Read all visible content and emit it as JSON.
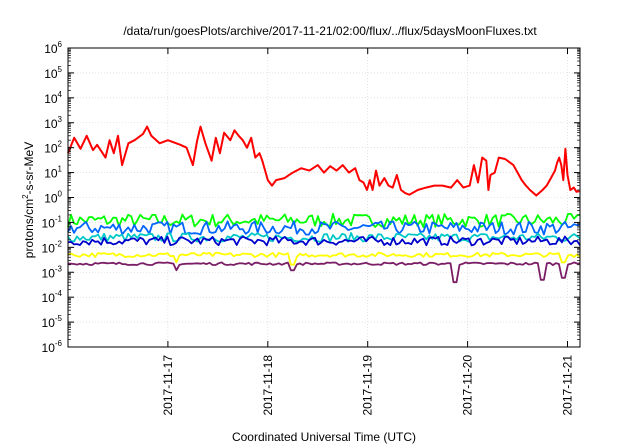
{
  "chart_data": {
    "type": "line",
    "title": "/data/run/goesPlots/archive/2017-11-21/02:00/flux/../flux/5daysMoonFluxes.txt",
    "xlabel": "Coordinated Universal Time (UTC)",
    "ylabel_parts": {
      "pre": "protons/cm",
      "sup": "2",
      "post": "-s-sr-MeV"
    },
    "y_scale": "log",
    "ylim": [
      1e-06,
      1000000.0
    ],
    "xlim": [
      "2017-11-16T00:00",
      "2017-11-21T03:00"
    ],
    "y_ticks": [
      {
        "value": 1e-06,
        "base": "10",
        "exp": "-6"
      },
      {
        "value": 1e-05,
        "base": "10",
        "exp": "-5"
      },
      {
        "value": 0.0001,
        "base": "10",
        "exp": "-4"
      },
      {
        "value": 0.001,
        "base": "10",
        "exp": "-3"
      },
      {
        "value": 0.01,
        "base": "10",
        "exp": "-2"
      },
      {
        "value": 0.1,
        "base": "10",
        "exp": "-1"
      },
      {
        "value": 1,
        "base": "10",
        "exp": "0"
      },
      {
        "value": 10.0,
        "base": "10",
        "exp": "1"
      },
      {
        "value": 100.0,
        "base": "10",
        "exp": "2"
      },
      {
        "value": 1000.0,
        "base": "10",
        "exp": "3"
      },
      {
        "value": 10000.0,
        "base": "10",
        "exp": "4"
      },
      {
        "value": 100000.0,
        "base": "10",
        "exp": "5"
      },
      {
        "value": 1000000.0,
        "base": "10",
        "exp": "6"
      }
    ],
    "x_ticks": [
      {
        "date": "2017-11-17T00:00",
        "label": "2017-11-17"
      },
      {
        "date": "2017-11-18T00:00",
        "label": "2017-11-18"
      },
      {
        "date": "2017-11-19T00:00",
        "label": "2017-11-19"
      },
      {
        "date": "2017-11-20T00:00",
        "label": "2017-11-20"
      },
      {
        "date": "2017-11-21T00:00",
        "label": "2017-11-21"
      }
    ],
    "grid": true,
    "legend": "none",
    "series": [
      {
        "color": "#ff0000",
        "points": [
          [
            "2017-11-16T00:00",
            60
          ],
          [
            "2017-11-16T01:30",
            250
          ],
          [
            "2017-11-16T03:00",
            90
          ],
          [
            "2017-11-16T04:30",
            300
          ],
          [
            "2017-11-16T06:00",
            80
          ],
          [
            "2017-11-16T07:00",
            130
          ],
          [
            "2017-11-16T09:00",
            40
          ],
          [
            "2017-11-16T10:00",
            200
          ],
          [
            "2017-11-16T11:00",
            60
          ],
          [
            "2017-11-16T12:00",
            300
          ],
          [
            "2017-11-16T13:00",
            20
          ],
          [
            "2017-11-16T14:30",
            150
          ],
          [
            "2017-11-16T16:00",
            200
          ],
          [
            "2017-11-16T18:00",
            350
          ],
          [
            "2017-11-16T19:00",
            700
          ],
          [
            "2017-11-16T20:00",
            300
          ],
          [
            "2017-11-16T22:00",
            150
          ],
          [
            "2017-11-17T00:00",
            200
          ],
          [
            "2017-11-17T03:00",
            130
          ],
          [
            "2017-11-17T04:30",
            100
          ],
          [
            "2017-11-17T06:00",
            20
          ],
          [
            "2017-11-17T07:00",
            180
          ],
          [
            "2017-11-17T07:50",
            700
          ],
          [
            "2017-11-17T09:00",
            150
          ],
          [
            "2017-11-17T10:30",
            30
          ],
          [
            "2017-11-17T11:30",
            250
          ],
          [
            "2017-11-17T12:30",
            60
          ],
          [
            "2017-11-17T13:30",
            400
          ],
          [
            "2017-11-17T15:00",
            200
          ],
          [
            "2017-11-17T16:00",
            500
          ],
          [
            "2017-11-17T17:00",
            300
          ],
          [
            "2017-11-17T18:00",
            200
          ],
          [
            "2017-11-17T19:00",
            100
          ],
          [
            "2017-11-17T20:00",
            250
          ],
          [
            "2017-11-17T21:00",
            40
          ],
          [
            "2017-11-17T22:00",
            60
          ],
          [
            "2017-11-17T22:40",
            30
          ],
          [
            "2017-11-17T23:30",
            10
          ],
          [
            "2017-11-18T00:00",
            5
          ],
          [
            "2017-11-18T01:00",
            3
          ],
          [
            "2017-11-18T02:00",
            5
          ],
          [
            "2017-11-18T04:00",
            6
          ],
          [
            "2017-11-18T06:00",
            10
          ],
          [
            "2017-11-18T08:00",
            15
          ],
          [
            "2017-11-18T10:00",
            12
          ],
          [
            "2017-11-18T12:00",
            20
          ],
          [
            "2017-11-18T13:30",
            10
          ],
          [
            "2017-11-18T15:00",
            18
          ],
          [
            "2017-11-18T16:30",
            12
          ],
          [
            "2017-11-18T18:00",
            20
          ],
          [
            "2017-11-18T19:30",
            10
          ],
          [
            "2017-11-18T21:00",
            15
          ],
          [
            "2017-11-18T22:00",
            5
          ],
          [
            "2017-11-18T23:00",
            4
          ],
          [
            "2017-11-18T23:50",
            2
          ],
          [
            "2017-11-19T00:30",
            5
          ],
          [
            "2017-11-19T01:10",
            2
          ],
          [
            "2017-11-19T02:00",
            12
          ],
          [
            "2017-11-19T02:50",
            3
          ],
          [
            "2017-11-19T04:00",
            6
          ],
          [
            "2017-11-19T05:00",
            3
          ],
          [
            "2017-11-19T06:00",
            2.5
          ],
          [
            "2017-11-19T07:00",
            8
          ],
          [
            "2017-11-19T08:00",
            2
          ],
          [
            "2017-11-19T09:00",
            1.5
          ],
          [
            "2017-11-19T10:00",
            1.3
          ],
          [
            "2017-11-19T12:00",
            2
          ],
          [
            "2017-11-19T14:00",
            2.5
          ],
          [
            "2017-11-19T16:00",
            3
          ],
          [
            "2017-11-19T18:00",
            3
          ],
          [
            "2017-11-19T20:00",
            2.5
          ],
          [
            "2017-11-19T21:30",
            5
          ],
          [
            "2017-11-19T23:00",
            2.5
          ],
          [
            "2017-11-20T00:30",
            3
          ],
          [
            "2017-11-20T01:30",
            20
          ],
          [
            "2017-11-20T02:30",
            4
          ],
          [
            "2017-11-20T03:30",
            40
          ],
          [
            "2017-11-20T04:30",
            30
          ],
          [
            "2017-11-20T05:00",
            2
          ],
          [
            "2017-11-20T05:30",
            8
          ],
          [
            "2017-11-20T06:30",
            10
          ],
          [
            "2017-11-20T07:30",
            40
          ],
          [
            "2017-11-20T09:00",
            35
          ],
          [
            "2017-11-20T11:00",
            20
          ],
          [
            "2017-11-20T12:00",
            10
          ],
          [
            "2017-11-20T13:00",
            5
          ],
          [
            "2017-11-20T14:00",
            3
          ],
          [
            "2017-11-20T15:00",
            2
          ],
          [
            "2017-11-20T16:30",
            1.2
          ],
          [
            "2017-11-20T18:00",
            2
          ],
          [
            "2017-11-20T19:00",
            3
          ],
          [
            "2017-11-20T20:00",
            6
          ],
          [
            "2017-11-20T21:00",
            12
          ],
          [
            "2017-11-20T21:30",
            25
          ],
          [
            "2017-11-20T22:00",
            40
          ],
          [
            "2017-11-20T22:30",
            20
          ],
          [
            "2017-11-20T23:00",
            5
          ],
          [
            "2017-11-20T23:30",
            90
          ],
          [
            "2017-11-21T00:00",
            8
          ],
          [
            "2017-11-21T00:40",
            2
          ],
          [
            "2017-11-21T01:30",
            2.5
          ],
          [
            "2017-11-21T02:10",
            1.7
          ],
          [
            "2017-11-21T02:50",
            1.8
          ]
        ]
      },
      {
        "color": "#00ff00",
        "base": 0.12,
        "amp": 0.3,
        "step": 1,
        "dips": []
      },
      {
        "color": "#0066ff",
        "base": 0.06,
        "amp": 0.3,
        "step": 1,
        "dips": []
      },
      {
        "color": "#00c8c8",
        "base": 0.025,
        "amp": 0.2,
        "step": 1,
        "dips": []
      },
      {
        "color": "#0000cc",
        "base": 0.018,
        "amp": 0.2,
        "step": 1,
        "dips": []
      },
      {
        "color": "#ffff00",
        "base": 0.005,
        "amp": 0.1,
        "step": 1,
        "dips": [
          [
            "2017-11-17T02:00",
            0.0025
          ],
          [
            "2017-11-18T06:00",
            0.002
          ],
          [
            "2017-11-20T23:00",
            0.0025
          ]
        ]
      },
      {
        "color": "#7b1e66",
        "base": 0.0022,
        "amp": 0.06,
        "step": 1,
        "dips": [
          [
            "2017-11-17T02:00",
            0.0012
          ],
          [
            "2017-11-18T06:00",
            0.0012
          ],
          [
            "2017-11-19T21:00",
            0.0004
          ],
          [
            "2017-11-20T18:00",
            0.0005
          ],
          [
            "2017-11-20T23:00",
            0.0006
          ]
        ]
      }
    ]
  }
}
